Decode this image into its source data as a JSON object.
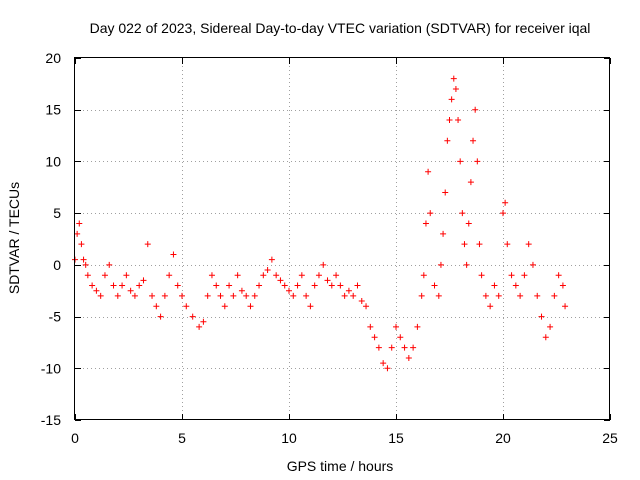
{
  "chart_data": {
    "type": "scatter",
    "title": "Day 022 of 2023, Sidereal Day-to-day VTEC variation (SDTVAR) for receiver iqal",
    "xlabel": "GPS time / hours",
    "ylabel": "SDTVAR / TECUs",
    "xlim": [
      0,
      25
    ],
    "ylim": [
      -15,
      20
    ],
    "xticks": [
      0,
      5,
      10,
      15,
      20,
      25
    ],
    "xtick_labels": [
      "0",
      "5",
      "10",
      "15",
      "20",
      "25"
    ],
    "yticks": [
      -15,
      -10,
      -5,
      0,
      5,
      10,
      15,
      20
    ],
    "ytick_labels": [
      "-15",
      "-10",
      "-5",
      "0",
      "5",
      "10",
      "15",
      "20"
    ],
    "grid": true,
    "marker": "plus",
    "color": "#ff0000",
    "series": [
      {
        "name": "SDTVAR",
        "x": [
          0.0,
          0.1,
          0.2,
          0.3,
          0.4,
          0.5,
          0.6,
          0.8,
          1.0,
          1.2,
          1.4,
          1.6,
          1.8,
          2.0,
          2.2,
          2.4,
          2.6,
          2.8,
          3.0,
          3.2,
          3.4,
          3.6,
          3.8,
          4.0,
          4.2,
          4.4,
          4.6,
          4.8,
          5.0,
          5.2,
          5.5,
          5.8,
          6.0,
          6.2,
          6.4,
          6.6,
          6.8,
          7.0,
          7.2,
          7.4,
          7.6,
          7.8,
          8.0,
          8.2,
          8.4,
          8.6,
          8.8,
          9.0,
          9.2,
          9.4,
          9.6,
          9.8,
          10.0,
          10.2,
          10.4,
          10.6,
          10.8,
          11.0,
          11.2,
          11.4,
          11.6,
          11.8,
          12.0,
          12.2,
          12.4,
          12.6,
          12.8,
          13.0,
          13.2,
          13.4,
          13.6,
          13.8,
          14.0,
          14.2,
          14.4,
          14.6,
          14.8,
          15.0,
          15.2,
          15.4,
          15.6,
          15.8,
          16.0,
          16.2,
          16.3,
          16.4,
          16.5,
          16.6,
          16.8,
          17.0,
          17.1,
          17.2,
          17.3,
          17.4,
          17.5,
          17.6,
          17.7,
          17.8,
          17.9,
          18.0,
          18.1,
          18.2,
          18.3,
          18.4,
          18.5,
          18.6,
          18.7,
          18.8,
          18.9,
          19.0,
          19.2,
          19.4,
          19.6,
          19.8,
          20.0,
          20.1,
          20.2,
          20.4,
          20.6,
          20.8,
          21.0,
          21.2,
          21.4,
          21.6,
          21.8,
          22.0,
          22.2,
          22.4,
          22.6,
          22.8,
          22.9
        ],
        "y": [
          0.5,
          3.0,
          4.0,
          2.0,
          0.5,
          0.0,
          -1.0,
          -2.0,
          -2.5,
          -3.0,
          -1.0,
          0.0,
          -2.0,
          -3.0,
          -2.0,
          -1.0,
          -2.5,
          -3.0,
          -2.0,
          -1.5,
          2.0,
          -3.0,
          -4.0,
          -5.0,
          -3.0,
          -1.0,
          1.0,
          -2.0,
          -3.0,
          -4.0,
          -5.0,
          -6.0,
          -5.5,
          -3.0,
          -1.0,
          -2.0,
          -3.0,
          -4.0,
          -2.0,
          -3.0,
          -1.0,
          -2.5,
          -3.0,
          -4.0,
          -3.0,
          -2.0,
          -1.0,
          -0.5,
          0.5,
          -1.0,
          -1.5,
          -2.0,
          -2.5,
          -3.0,
          -2.0,
          -1.0,
          -3.0,
          -4.0,
          -2.0,
          -1.0,
          0.0,
          -1.5,
          -2.0,
          -1.0,
          -2.0,
          -3.0,
          -2.5,
          -3.0,
          -2.0,
          -3.5,
          -4.0,
          -6.0,
          -7.0,
          -8.0,
          -9.5,
          -10.0,
          -8.0,
          -6.0,
          -7.0,
          -8.0,
          -9.0,
          -8.0,
          -6.0,
          -3.0,
          -1.0,
          4.0,
          9.0,
          5.0,
          -2.0,
          -3.0,
          0.0,
          3.0,
          7.0,
          12.0,
          14.0,
          16.0,
          18.0,
          17.0,
          14.0,
          10.0,
          5.0,
          2.0,
          0.0,
          4.0,
          8.0,
          12.0,
          15.0,
          10.0,
          2.0,
          -1.0,
          -3.0,
          -4.0,
          -2.0,
          -3.0,
          5.0,
          6.0,
          2.0,
          -1.0,
          -2.0,
          -3.0,
          -1.0,
          2.0,
          0.0,
          -3.0,
          -5.0,
          -7.0,
          -6.0,
          -3.0,
          -1.0,
          -2.0,
          -4.0
        ]
      }
    ]
  }
}
